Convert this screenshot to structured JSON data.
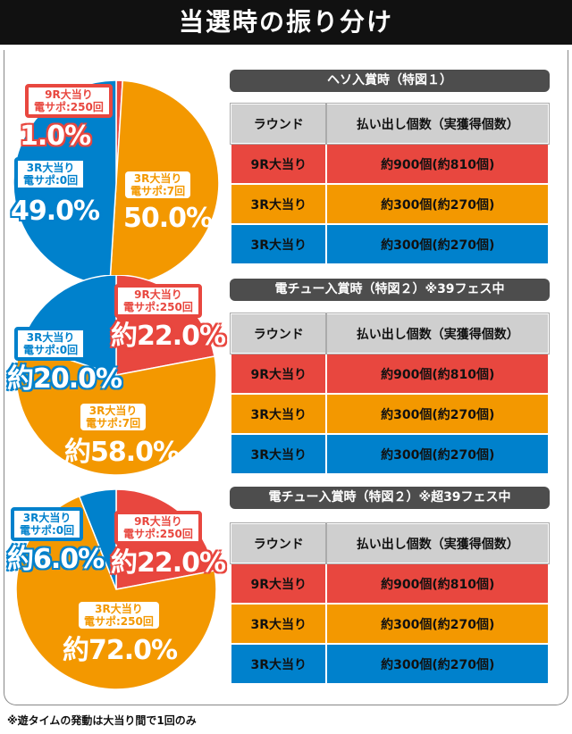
{
  "title": "当選時の振り分け",
  "colors": {
    "red": "#e8473f",
    "orange": "#f39800",
    "blue": "#0081cc",
    "header": "#4d4d4d"
  },
  "sections": [
    {
      "heading": "ヘソ入賞時（特図１）",
      "pie": [
        {
          "label1": "9R大当り",
          "label2": "電サポ:250回",
          "pct": "1.0%",
          "value": 1,
          "color": "red"
        },
        {
          "label1": "3R大当り",
          "label2": "電サポ:7回",
          "pct": "50.0%",
          "value": 50,
          "color": "orange"
        },
        {
          "label1": "3R大当り",
          "label2": "電サポ:0回",
          "pct": "49.0%",
          "value": 49,
          "color": "blue"
        }
      ],
      "table": {
        "headers": [
          "ラウンド",
          "払い出し個数（実獲得個数）"
        ],
        "rows": [
          [
            "9R大当り",
            "約900個(約810個)"
          ],
          [
            "3R大当り",
            "約300個(約270個)"
          ],
          [
            "3R大当り",
            "約300個(約270個)"
          ]
        ]
      }
    },
    {
      "heading": "電チュー入賞時（特図２）※39フェス中",
      "pie": [
        {
          "label1": "9R大当り",
          "label2": "電サポ:250回",
          "pct": "約22.0%",
          "value": 22,
          "color": "red"
        },
        {
          "label1": "3R大当り",
          "label2": "電サポ:7回",
          "pct": "約58.0%",
          "value": 58,
          "color": "orange"
        },
        {
          "label1": "3R大当り",
          "label2": "電サポ:0回",
          "pct": "約20.0%",
          "value": 20,
          "color": "blue"
        }
      ],
      "table": {
        "headers": [
          "ラウンド",
          "払い出し個数（実獲得個数）"
        ],
        "rows": [
          [
            "9R大当り",
            "約900個(約810個)"
          ],
          [
            "3R大当り",
            "約300個(約270個)"
          ],
          [
            "3R大当り",
            "約300個(約270個)"
          ]
        ]
      }
    },
    {
      "heading": "電チュー入賞時（特図２）※超39フェス中",
      "pie": [
        {
          "label1": "9R大当り",
          "label2": "電サポ:250回",
          "pct": "約22.0%",
          "value": 22,
          "color": "red"
        },
        {
          "label1": "3R大当り",
          "label2": "電サポ:250回",
          "pct": "約72.0%",
          "value": 72,
          "color": "orange"
        },
        {
          "label1": "3R大当り",
          "label2": "電サポ:0回",
          "pct": "約6.0%",
          "value": 6,
          "color": "blue"
        }
      ],
      "table": {
        "headers": [
          "ラウンド",
          "払い出し個数（実獲得個数）"
        ],
        "rows": [
          [
            "9R大当り",
            "約900個(約810個)"
          ],
          [
            "3R大当り",
            "約300個(約270個)"
          ],
          [
            "3R大当り",
            "約300個(約270個)"
          ]
        ]
      }
    }
  ],
  "note": "※遊タイムの発動は大当り間で1回のみ"
}
